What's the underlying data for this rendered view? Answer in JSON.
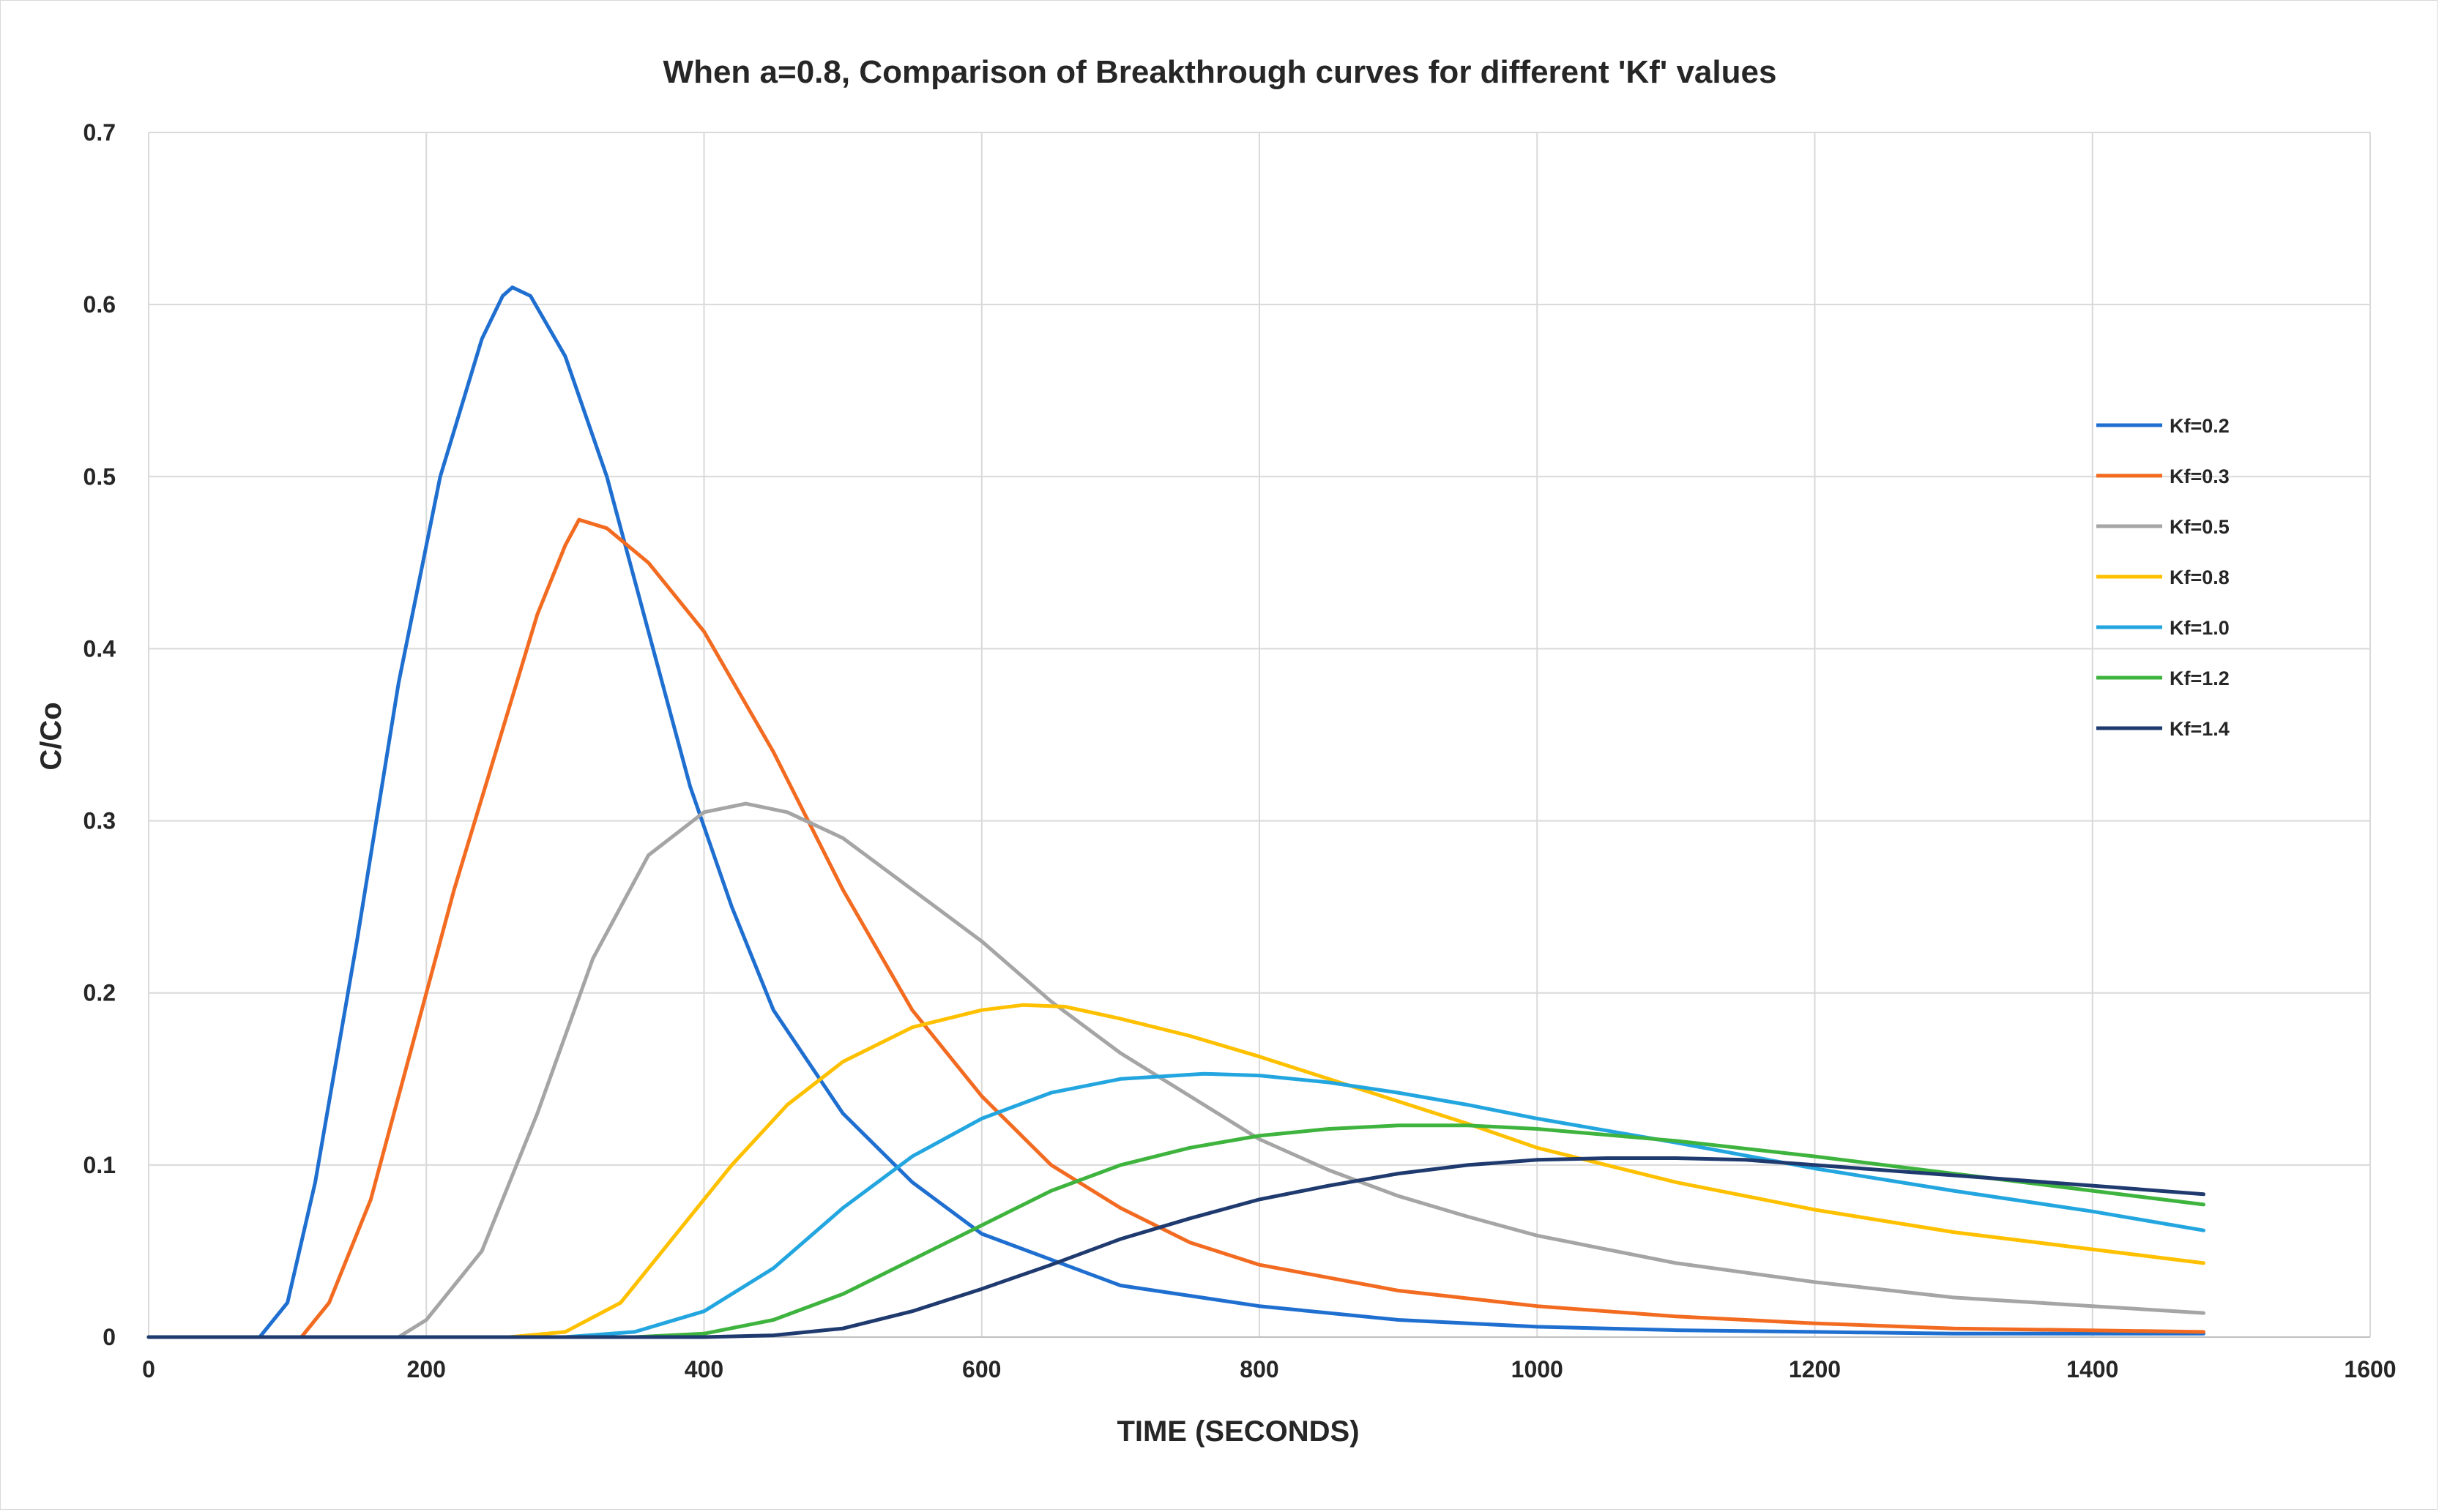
{
  "chart_data": {
    "type": "line",
    "title": "When a=0.8, Comparison of Breakthrough curves for different 'Kf' values",
    "xlabel": "TIME (SECONDS)",
    "ylabel": "C/Co",
    "xlim": [
      0,
      1600
    ],
    "ylim": [
      0,
      0.7
    ],
    "xticks": [
      0,
      200,
      400,
      600,
      800,
      1000,
      1200,
      1400,
      1600
    ],
    "yticks": [
      0,
      0.1,
      0.2,
      0.3,
      0.4,
      0.5,
      0.6,
      0.7
    ],
    "ytick_labels": [
      "0",
      "0.1",
      "0.2",
      "0.3",
      "0.4",
      "0.5",
      "0.6",
      "0.7"
    ],
    "grid": "both",
    "legend_position": "right",
    "series": [
      {
        "name": "Kf=0.2",
        "color": "#1F6FD0",
        "points": [
          [
            0,
            0
          ],
          [
            80,
            0
          ],
          [
            100,
            0.02
          ],
          [
            120,
            0.09
          ],
          [
            150,
            0.23
          ],
          [
            180,
            0.38
          ],
          [
            210,
            0.5
          ],
          [
            240,
            0.58
          ],
          [
            255,
            0.605
          ],
          [
            262,
            0.61
          ],
          [
            275,
            0.605
          ],
          [
            300,
            0.57
          ],
          [
            330,
            0.5
          ],
          [
            360,
            0.41
          ],
          [
            390,
            0.32
          ],
          [
            420,
            0.25
          ],
          [
            450,
            0.19
          ],
          [
            500,
            0.13
          ],
          [
            550,
            0.09
          ],
          [
            600,
            0.06
          ],
          [
            650,
            0.045
          ],
          [
            700,
            0.03
          ],
          [
            800,
            0.018
          ],
          [
            900,
            0.01
          ],
          [
            1000,
            0.006
          ],
          [
            1100,
            0.004
          ],
          [
            1200,
            0.003
          ],
          [
            1300,
            0.002
          ],
          [
            1480,
            0.002
          ]
        ]
      },
      {
        "name": "Kf=0.3",
        "color": "#F26B21",
        "points": [
          [
            0,
            0
          ],
          [
            110,
            0
          ],
          [
            130,
            0.02
          ],
          [
            160,
            0.08
          ],
          [
            190,
            0.17
          ],
          [
            220,
            0.26
          ],
          [
            250,
            0.34
          ],
          [
            280,
            0.42
          ],
          [
            300,
            0.46
          ],
          [
            310,
            0.475
          ],
          [
            330,
            0.47
          ],
          [
            360,
            0.45
          ],
          [
            400,
            0.41
          ],
          [
            450,
            0.34
          ],
          [
            500,
            0.26
          ],
          [
            550,
            0.19
          ],
          [
            600,
            0.14
          ],
          [
            650,
            0.1
          ],
          [
            700,
            0.075
          ],
          [
            750,
            0.055
          ],
          [
            800,
            0.042
          ],
          [
            900,
            0.027
          ],
          [
            1000,
            0.018
          ],
          [
            1100,
            0.012
          ],
          [
            1200,
            0.008
          ],
          [
            1300,
            0.005
          ],
          [
            1480,
            0.003
          ]
        ]
      },
      {
        "name": "Kf=0.5",
        "color": "#A5A5A5",
        "points": [
          [
            0,
            0
          ],
          [
            180,
            0
          ],
          [
            200,
            0.01
          ],
          [
            240,
            0.05
          ],
          [
            280,
            0.13
          ],
          [
            320,
            0.22
          ],
          [
            360,
            0.28
          ],
          [
            400,
            0.305
          ],
          [
            430,
            0.31
          ],
          [
            460,
            0.305
          ],
          [
            500,
            0.29
          ],
          [
            550,
            0.26
          ],
          [
            600,
            0.23
          ],
          [
            650,
            0.195
          ],
          [
            700,
            0.165
          ],
          [
            750,
            0.14
          ],
          [
            800,
            0.115
          ],
          [
            850,
            0.097
          ],
          [
            900,
            0.082
          ],
          [
            950,
            0.07
          ],
          [
            1000,
            0.059
          ],
          [
            1100,
            0.043
          ],
          [
            1200,
            0.032
          ],
          [
            1300,
            0.023
          ],
          [
            1400,
            0.018
          ],
          [
            1480,
            0.014
          ]
        ]
      },
      {
        "name": "Kf=0.8",
        "color": "#FFC000",
        "points": [
          [
            0,
            0
          ],
          [
            260,
            0
          ],
          [
            300,
            0.003
          ],
          [
            340,
            0.02
          ],
          [
            380,
            0.06
          ],
          [
            420,
            0.1
          ],
          [
            460,
            0.135
          ],
          [
            500,
            0.16
          ],
          [
            550,
            0.18
          ],
          [
            600,
            0.19
          ],
          [
            630,
            0.193
          ],
          [
            660,
            0.192
          ],
          [
            700,
            0.185
          ],
          [
            750,
            0.175
          ],
          [
            800,
            0.163
          ],
          [
            850,
            0.15
          ],
          [
            900,
            0.137
          ],
          [
            950,
            0.124
          ],
          [
            1000,
            0.11
          ],
          [
            1050,
            0.1
          ],
          [
            1100,
            0.09
          ],
          [
            1200,
            0.074
          ],
          [
            1300,
            0.061
          ],
          [
            1400,
            0.051
          ],
          [
            1480,
            0.043
          ]
        ]
      },
      {
        "name": "Kf=1.0",
        "color": "#23A6DF",
        "points": [
          [
            0,
            0
          ],
          [
            300,
            0
          ],
          [
            350,
            0.003
          ],
          [
            400,
            0.015
          ],
          [
            450,
            0.04
          ],
          [
            500,
            0.075
          ],
          [
            550,
            0.105
          ],
          [
            600,
            0.127
          ],
          [
            650,
            0.142
          ],
          [
            700,
            0.15
          ],
          [
            760,
            0.153
          ],
          [
            800,
            0.152
          ],
          [
            850,
            0.148
          ],
          [
            900,
            0.142
          ],
          [
            950,
            0.135
          ],
          [
            1000,
            0.127
          ],
          [
            1100,
            0.113
          ],
          [
            1200,
            0.098
          ],
          [
            1300,
            0.085
          ],
          [
            1400,
            0.073
          ],
          [
            1480,
            0.062
          ]
        ]
      },
      {
        "name": "Kf=1.2",
        "color": "#3EB33E",
        "points": [
          [
            0,
            0
          ],
          [
            350,
            0
          ],
          [
            400,
            0.002
          ],
          [
            450,
            0.01
          ],
          [
            500,
            0.025
          ],
          [
            550,
            0.045
          ],
          [
            600,
            0.065
          ],
          [
            650,
            0.085
          ],
          [
            700,
            0.1
          ],
          [
            750,
            0.11
          ],
          [
            800,
            0.117
          ],
          [
            850,
            0.121
          ],
          [
            900,
            0.123
          ],
          [
            950,
            0.123
          ],
          [
            1000,
            0.121
          ],
          [
            1100,
            0.114
          ],
          [
            1200,
            0.105
          ],
          [
            1300,
            0.095
          ],
          [
            1400,
            0.085
          ],
          [
            1480,
            0.077
          ]
        ]
      },
      {
        "name": "Kf=1.4",
        "color": "#1F3A6E",
        "points": [
          [
            0,
            0
          ],
          [
            400,
            0
          ],
          [
            450,
            0.001
          ],
          [
            500,
            0.005
          ],
          [
            550,
            0.015
          ],
          [
            600,
            0.028
          ],
          [
            650,
            0.042
          ],
          [
            700,
            0.057
          ],
          [
            750,
            0.069
          ],
          [
            800,
            0.08
          ],
          [
            850,
            0.088
          ],
          [
            900,
            0.095
          ],
          [
            950,
            0.1
          ],
          [
            1000,
            0.103
          ],
          [
            1050,
            0.104
          ],
          [
            1100,
            0.104
          ],
          [
            1150,
            0.103
          ],
          [
            1200,
            0.1
          ],
          [
            1300,
            0.094
          ],
          [
            1400,
            0.088
          ],
          [
            1480,
            0.083
          ]
        ]
      }
    ]
  }
}
